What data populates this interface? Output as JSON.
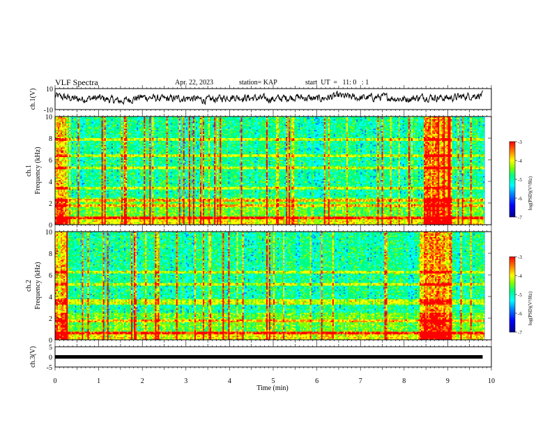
{
  "header": {
    "title": "VLF Spectra",
    "date": "Apr. 22, 2023",
    "station": "station= KAP",
    "start": "start  UT  =   11: 0   : 1"
  },
  "colors": {
    "trace": "#000000",
    "spectrogram_palette": [
      "#00008f",
      "#0000ff",
      "#0080ff",
      "#00ffff",
      "#00ff80",
      "#80ff00",
      "#ffff00",
      "#ff8000",
      "#ff0000"
    ]
  },
  "chart_data": [
    {
      "type": "line",
      "panel": "ch1-waveform",
      "ylabel": "ch.1(V)",
      "ylim": [
        -10,
        10
      ],
      "yticks": [
        "10",
        "-10"
      ],
      "xlim": [
        0,
        10
      ],
      "series": [
        {
          "x": [
            0,
            0.5,
            1,
            1.5,
            2,
            2.5,
            3,
            3.5,
            4,
            4.5,
            5,
            5.5,
            6,
            6.5,
            7,
            7.5,
            8,
            8.5,
            9,
            9.5,
            9.8
          ],
          "values": [
            3,
            0,
            1,
            -2,
            2,
            0,
            1,
            -1,
            2,
            1,
            0,
            2,
            0,
            3,
            1,
            2,
            0,
            2,
            1,
            3,
            4
          ]
        }
      ]
    },
    {
      "type": "heatmap",
      "panel": "ch1-spectrogram",
      "ylabel": "ch.1\nFrequency (kHz)",
      "xlim": [
        0,
        10
      ],
      "ylim": [
        0,
        10
      ],
      "yticks": [
        "0",
        "2",
        "4",
        "6",
        "8",
        "10"
      ],
      "features": {
        "broadband_burst_minutes": [
          0,
          0.3
        ],
        "enhanced_band_minutes": [
          8.45,
          9.1
        ],
        "horizontal_line_khz": [
          0.6,
          1.8,
          2.2,
          3.4,
          5.3,
          6.4,
          7.9
        ]
      },
      "colorbar": {
        "label": "log(PSD)(V²/Hz)",
        "ticks": [
          "-3",
          "-4",
          "-5",
          "-6",
          "-7"
        ],
        "range": [
          -7,
          -3
        ]
      }
    },
    {
      "type": "heatmap",
      "panel": "ch2-spectrogram",
      "ylabel": "ch.2\nFrequency (kHz)",
      "xlim": [
        0,
        10
      ],
      "ylim": [
        0,
        10
      ],
      "yticks": [
        "0",
        "2",
        "4",
        "6",
        "8",
        "10"
      ],
      "features": {
        "broadband_burst_minutes": [
          0,
          0.3
        ],
        "enhanced_band_minutes": [
          8.45,
          9.1
        ],
        "horizontal_line_khz": [
          0.6,
          1.8,
          3.4,
          3.6,
          5.1,
          6.3
        ]
      },
      "colorbar": {
        "label": "log(PSD)(V²/Hz)",
        "ticks": [
          "-3",
          "-4",
          "-5",
          "-6",
          "-7"
        ],
        "range": [
          -7,
          -3
        ]
      }
    },
    {
      "type": "line",
      "panel": "ch3-waveform",
      "ylabel": "ch.3(V)",
      "ylim": [
        -5,
        5
      ],
      "yticks": [
        "5",
        "0",
        "-5"
      ],
      "xlim": [
        0,
        10
      ],
      "series": [
        {
          "x": [
            0,
            9.8
          ],
          "values": [
            0,
            0
          ]
        }
      ],
      "xlabel": "Time  (min)",
      "xticks": [
        "0",
        "1",
        "2",
        "3",
        "4",
        "5",
        "6",
        "7",
        "8",
        "9",
        "10"
      ]
    }
  ]
}
